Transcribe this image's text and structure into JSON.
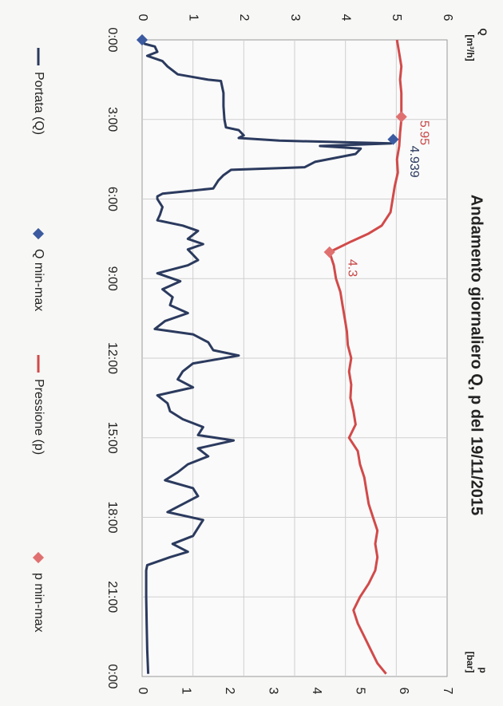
{
  "chart_data": {
    "type": "line",
    "title": "Andamento giornaliero Q, p  del 19/11/2015",
    "y_left_label_top": "Q",
    "y_left_label_unit": "[m³/h]",
    "y_right_label_top": "p",
    "y_right_label_unit": "[bar]",
    "y_left_ticks": [
      "0",
      "1",
      "2",
      "3",
      "4",
      "5",
      "6"
    ],
    "y_left_range": [
      0,
      6
    ],
    "y_right_ticks": [
      "0",
      "1",
      "2",
      "3",
      "4",
      "5",
      "6",
      "7"
    ],
    "y_right_range": [
      0,
      7
    ],
    "x_ticks": [
      "0:00",
      "3:00",
      "6:00",
      "9:00",
      "12:00",
      "15:00",
      "18:00",
      "21:00",
      "0:00"
    ],
    "x_range_hours": [
      0,
      24
    ],
    "grid": true,
    "legend_position": "bottom",
    "orientation_note": "figure rotated 90° clockwise",
    "series": [
      {
        "name": "Portata (Q)",
        "axis": "left",
        "color": "#2b3a5e",
        "x": [
          0,
          0.15,
          0.25,
          0.45,
          0.6,
          0.8,
          1.0,
          1.3,
          1.5,
          1.55,
          2.0,
          2.5,
          3.0,
          3.3,
          3.4,
          3.6,
          3.7,
          3.8,
          3.9,
          4.0,
          4.1,
          4.3,
          4.6,
          4.8,
          4.9,
          5.1,
          5.3,
          5.6,
          5.8,
          5.9,
          6.0,
          6.3,
          6.6,
          6.8,
          7.0,
          7.2,
          7.5,
          7.7,
          7.9,
          8.1,
          8.3,
          8.5,
          8.8,
          9.1,
          9.4,
          9.7,
          10.0,
          10.3,
          10.6,
          10.9,
          11.1,
          11.4,
          11.7,
          11.9,
          12.2,
          12.5,
          12.8,
          13.1,
          13.4,
          13.7,
          14.0,
          14.3,
          14.6,
          14.9,
          15.1,
          15.4,
          15.7,
          16.0,
          16.3,
          16.6,
          16.9,
          17.2,
          17.5,
          17.8,
          18.1,
          18.4,
          18.7,
          19.0,
          19.3,
          19.5,
          19.8,
          20.0,
          21.0,
          22.0,
          23.0,
          23.9
        ],
        "values": [
          0,
          0.05,
          0.25,
          0.3,
          0.1,
          0.4,
          0.5,
          0.7,
          1.3,
          1.55,
          1.6,
          1.6,
          1.62,
          1.65,
          1.9,
          2.0,
          1.9,
          2.7,
          4.9,
          3.5,
          4.3,
          4.2,
          3.4,
          3.2,
          1.75,
          1.6,
          1.5,
          1.4,
          0.4,
          0.3,
          0.3,
          0.4,
          0.35,
          0.3,
          0.8,
          1.1,
          0.9,
          1.2,
          0.9,
          1.0,
          1.1,
          0.9,
          0.3,
          0.75,
          0.4,
          0.6,
          0.55,
          0.9,
          0.45,
          0.25,
          1.0,
          1.3,
          1.4,
          1.9,
          1.0,
          0.8,
          0.7,
          1.0,
          0.3,
          0.5,
          0.55,
          0.8,
          1.2,
          1.1,
          1.8,
          1.1,
          1.3,
          0.9,
          0.7,
          0.45,
          1.0,
          1.1,
          0.8,
          0.5,
          1.2,
          1.1,
          1.0,
          0.6,
          0.9,
          0.55,
          0.1,
          0.08,
          0.08,
          0.09,
          0.1,
          0.12
        ]
      },
      {
        "name": "Q min-max",
        "axis": "left",
        "type": "scatter",
        "color": "#3b5aa0",
        "points": [
          {
            "x": 0.0,
            "y": 0.0,
            "label": ""
          },
          {
            "x": 3.75,
            "y": 4.939,
            "label": "4.939"
          }
        ]
      },
      {
        "name": "Pressione (p)",
        "axis": "right",
        "color": "#d24a4a",
        "x": [
          0,
          0.5,
          1.0,
          1.5,
          2.0,
          2.5,
          3.0,
          3.5,
          4.0,
          4.5,
          5.0,
          5.5,
          6.0,
          6.5,
          7.0,
          7.3,
          7.6,
          8.0,
          8.5,
          9.0,
          9.5,
          10.0,
          10.5,
          11.0,
          11.5,
          12.0,
          12.5,
          13.0,
          13.5,
          14.0,
          14.5,
          15.0,
          15.5,
          16.0,
          16.5,
          17.0,
          17.5,
          18.0,
          18.5,
          19.0,
          19.5,
          20.0,
          20.5,
          21.0,
          21.5,
          22.0,
          22.5,
          23.0,
          23.5,
          23.9
        ],
        "values": [
          5.85,
          5.9,
          5.95,
          5.92,
          5.95,
          5.95,
          5.95,
          5.92,
          5.9,
          5.85,
          5.87,
          5.8,
          5.75,
          5.7,
          5.5,
          5.2,
          4.8,
          4.3,
          4.4,
          4.45,
          4.55,
          4.6,
          4.65,
          4.7,
          4.72,
          4.8,
          4.75,
          4.8,
          4.78,
          4.85,
          4.9,
          4.75,
          4.95,
          5.0,
          5.1,
          5.15,
          5.2,
          5.3,
          5.4,
          5.35,
          5.4,
          5.35,
          5.2,
          5.0,
          4.85,
          4.95,
          5.1,
          5.25,
          5.4,
          5.6
        ]
      },
      {
        "name": "p min-max",
        "axis": "right",
        "type": "scatter",
        "color": "#e07070",
        "points": [
          {
            "x": 2.9,
            "y": 5.95,
            "label": "5.95"
          },
          {
            "x": 8.0,
            "y": 4.3,
            "label": "4.3"
          }
        ]
      }
    ]
  }
}
